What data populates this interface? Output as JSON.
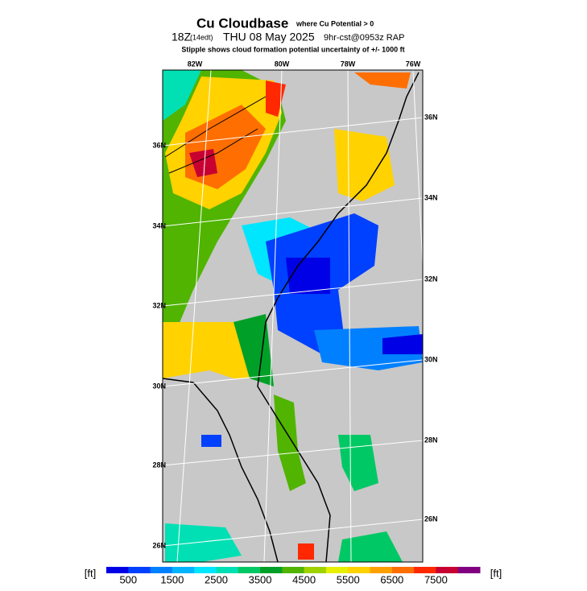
{
  "header": {
    "title": "Cu Cloudbase",
    "title_note": "where Cu Potential > 0",
    "run_time": "18Z",
    "local_time": "(14edt)",
    "date": "THU 08 May 2025",
    "model": "9hr-cst@0953z RAP",
    "subtitle": "Stipple shows cloud formation potential uncertainty of +/-  1000 ft"
  },
  "map": {
    "lon_labels": [
      "82W",
      "80W",
      "78W",
      "76W"
    ],
    "lat_labels_left": [
      "36N",
      "34N",
      "32N",
      "30N",
      "28N",
      "26N"
    ],
    "lat_labels_right": [
      "36N",
      "34N",
      "32N",
      "30N",
      "28N",
      "26N"
    ]
  },
  "colorbar": {
    "unit": "[ft]",
    "ticks": [
      500,
      1500,
      2500,
      3500,
      4500,
      5500,
      6500,
      7500
    ],
    "colors": [
      "#0000e6",
      "#0040ff",
      "#0080ff",
      "#00b4ff",
      "#00e6ff",
      "#00e0b4",
      "#00c864",
      "#00a028",
      "#50b400",
      "#a0d200",
      "#e6f000",
      "#ffd200",
      "#ffa000",
      "#ff6e00",
      "#ff2800",
      "#c80032",
      "#800080"
    ]
  }
}
